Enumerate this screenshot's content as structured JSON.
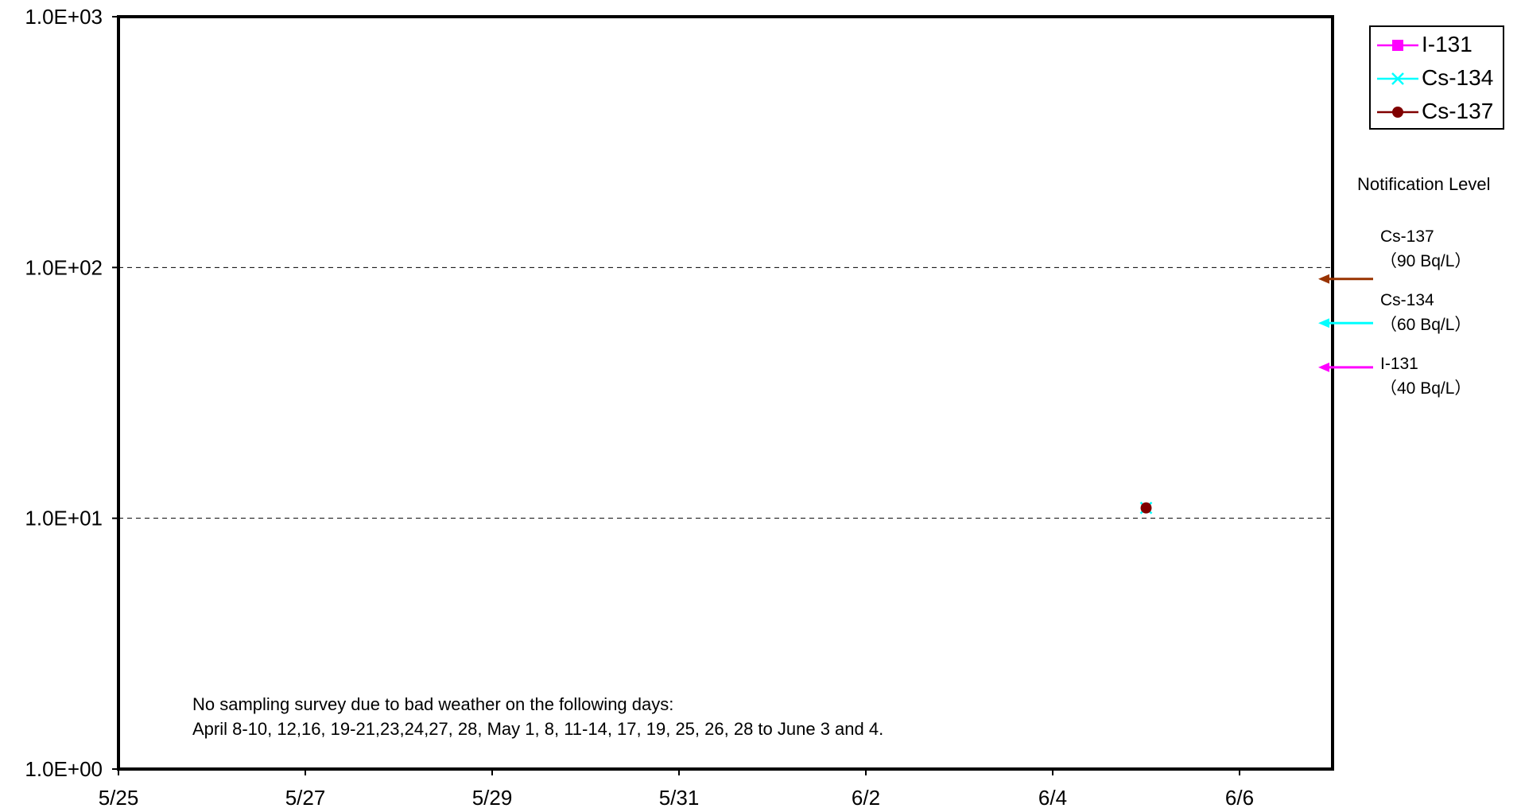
{
  "chart_data": {
    "type": "scatter",
    "title": "",
    "xlabel": "",
    "ylabel": "",
    "y_scale": "log",
    "ylim": [
      1,
      1000
    ],
    "y_ticks": [
      1,
      10,
      100,
      1000
    ],
    "y_tick_labels": [
      "1.0E+00",
      "1.0E+01",
      "1.0E+02",
      "1.0E+03"
    ],
    "xlim": [
      "5/25",
      "6/7"
    ],
    "x_ticks": [
      "5/25",
      "5/27",
      "5/29",
      "5/31",
      "6/2",
      "6/4",
      "6/6"
    ],
    "x_tick_labels": [
      "5/25",
      "5/27",
      "5/29",
      "5/31",
      "6/2",
      "6/4",
      "6/6"
    ],
    "grid": "dashed horizontal lines at 1.0E+01 and 1.0E+02",
    "legend_position": "top-right, outside plot",
    "series": [
      {
        "name": "I-131",
        "color": "#ff00ff",
        "marker": "square",
        "points": []
      },
      {
        "name": "Cs-134",
        "color": "#00ffff",
        "marker": "x",
        "points": [
          {
            "x": "6/5",
            "y": 11
          }
        ]
      },
      {
        "name": "Cs-137",
        "color": "#800000",
        "marker": "circle",
        "points": [
          {
            "x": "6/5",
            "y": 11
          }
        ]
      }
    ],
    "notification_levels": {
      "title": "Notification Level",
      "items": [
        {
          "nuclide": "Cs-137",
          "value_label": "（90  Bq/L）",
          "value": 90,
          "color": "#993300"
        },
        {
          "nuclide": "Cs-134",
          "value_label": "（60  Bq/L）",
          "value": 60,
          "color": "#00ffff"
        },
        {
          "nuclide": "I-131",
          "value_label": "（40  Bq/L）",
          "value": 40,
          "color": "#ff00ff"
        }
      ]
    },
    "annotation": [
      "No sampling survey due to bad weather on the following days:",
      "April 8-10, 12,16, 19-21,23,24,27, 28, May 1, 8, 11-14, 17, 19, 25, 26, 28  to June 3 and 4."
    ]
  }
}
